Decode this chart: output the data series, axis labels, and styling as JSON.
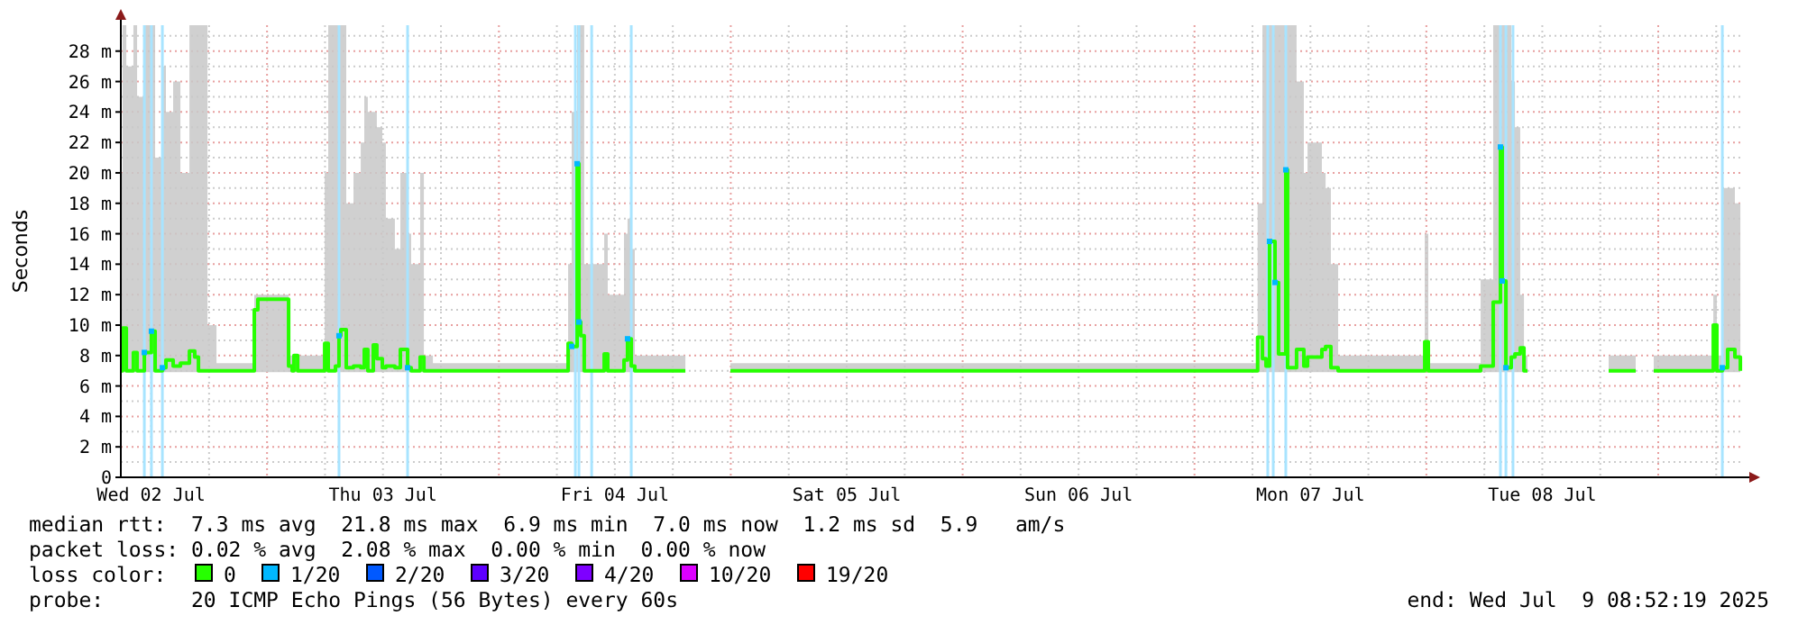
{
  "chart_data": {
    "type": "step",
    "ylabel": "Seconds",
    "xlim": [
      "2025-07-02T08:52",
      "2025-07-09T08:52"
    ],
    "xticks": [
      {
        "value": "2025-07-02T12:00",
        "label": "Wed 02 Jul"
      },
      {
        "value": "2025-07-03T12:00",
        "label": "Thu 03 Jul"
      },
      {
        "value": "2025-07-04T12:00",
        "label": "Fri 04 Jul"
      },
      {
        "value": "2025-07-05T12:00",
        "label": "Sat 05 Jul"
      },
      {
        "value": "2025-07-06T12:00",
        "label": "Sun 06 Jul"
      },
      {
        "value": "2025-07-07T12:00",
        "label": "Mon 07 Jul"
      },
      {
        "value": "2025-07-08T12:00",
        "label": "Tue 08 Jul"
      }
    ],
    "ylim": [
      0,
      29.7
    ],
    "yticks": [
      0,
      {
        "value": 2,
        "label": "2 m"
      },
      {
        "value": 4,
        "label": "4 m"
      },
      {
        "value": 6,
        "label": "6 m"
      },
      {
        "value": 8,
        "label": "8 m"
      },
      {
        "value": 10,
        "label": "10 m"
      },
      {
        "value": 12,
        "label": "12 m"
      },
      {
        "value": 14,
        "label": "14 m"
      },
      {
        "value": 16,
        "label": "16 m"
      },
      {
        "value": 18,
        "label": "18 m"
      },
      {
        "value": 20,
        "label": "20 m"
      },
      {
        "value": 22,
        "label": "22 m"
      },
      {
        "value": 24,
        "label": "24 m"
      },
      {
        "value": 26,
        "label": "26 m"
      },
      {
        "value": 28,
        "label": "28 m"
      }
    ],
    "grid": true,
    "legend": "bottom",
    "legend_title": "loss color:",
    "series": [
      {
        "name": "0",
        "color": "#26ff00",
        "x": [
          "2025-07-02T08:52",
          "2025-07-02T09:03",
          "2025-07-02T09:26",
          "2025-07-02T10:10",
          "2025-07-02T10:33",
          "2025-07-02T11:18",
          "2025-07-02T12:02",
          "2025-07-02T12:25",
          "2025-07-02T13:10",
          "2025-07-02T13:32",
          "2025-07-02T14:17",
          "2025-07-02T15:02",
          "2025-07-02T15:58",
          "2025-07-02T16:31",
          "2025-07-02T16:54",
          "2025-07-02T17:50",
          "2025-07-02T18:46",
          "2025-07-02T22:30",
          "2025-07-02T22:41",
          "2025-07-02T23:03",
          "2025-07-03T02:02",
          "2025-07-03T02:14",
          "2025-07-03T02:36",
          "2025-07-03T02:47",
          "2025-07-03T03:10",
          "2025-07-03T05:58",
          "2025-07-03T06:20",
          "2025-07-03T07:05",
          "2025-07-03T07:27",
          "2025-07-03T07:38",
          "2025-07-03T08:12",
          "2025-07-03T08:57",
          "2025-07-03T09:42",
          "2025-07-03T10:04",
          "2025-07-03T10:26",
          "2025-07-03T11:00",
          "2025-07-03T11:22",
          "2025-07-03T11:56",
          "2025-07-03T12:18",
          "2025-07-03T13:14",
          "2025-07-03T13:48",
          "2025-07-03T14:33",
          "2025-07-03T14:55",
          "2025-07-03T15:51",
          "2025-07-03T16:14",
          "2025-07-03T17:10",
          "2025-07-04T06:14",
          "2025-07-04T07:10",
          "2025-07-04T07:32",
          "2025-07-04T08:06",
          "2025-07-04T08:17",
          "2025-07-04T08:28",
          "2025-07-04T08:50",
          "2025-07-04T10:54",
          "2025-07-04T11:16",
          "2025-07-04T12:57",
          "2025-07-04T13:19",
          "2025-07-04T13:42",
          "2025-07-04T14:04",
          "2025-07-04T19:18",
          "2025-07-04T21:10",
          "2025-07-04T23:58",
          "2025-07-05T17:43",
          "2025-07-06T12:22",
          "2025-07-07T06:32",
          "2025-07-07T07:02",
          "2025-07-07T07:24",
          "2025-07-07T07:46",
          "2025-07-07T08:20",
          "2025-07-07T08:42",
          "2025-07-07T09:27",
          "2025-07-07T09:38",
          "2025-07-07T10:34",
          "2025-07-07T11:19",
          "2025-07-07T11:42",
          "2025-07-07T13:11",
          "2025-07-07T13:34",
          "2025-07-07T14:07",
          "2025-07-07T14:52",
          "2025-07-07T23:50",
          "2025-07-08T00:12",
          "2025-07-08T05:37",
          "2025-07-08T06:55",
          "2025-07-08T07:40",
          "2025-07-08T07:51",
          "2025-07-08T08:14",
          "2025-07-08T08:47",
          "2025-07-08T09:10",
          "2025-07-08T09:43",
          "2025-07-08T10:06",
          "2025-07-08T10:28",
          "2025-07-08T11:02",
          "2025-07-08T18:52",
          "2025-07-08T21:40",
          "2025-07-08T22:14",
          "2025-07-08T23:32",
          "2025-07-09T05:42",
          "2025-07-09T06:04",
          "2025-07-09T06:38",
          "2025-07-09T07:11",
          "2025-07-09T07:56",
          "2025-07-09T08:30"
        ],
        "values": [
          7.0,
          9.8,
          7.0,
          8.2,
          7.0,
          8.2,
          9.6,
          7.0,
          7.2,
          7.7,
          7.3,
          7.5,
          8.3,
          7.9,
          7.0,
          7.0,
          7.0,
          7.0,
          11.0,
          11.7,
          11.7,
          7.3,
          7.0,
          8.0,
          7.0,
          8.8,
          7.0,
          7.3,
          9.3,
          9.7,
          7.2,
          7.3,
          7.2,
          8.4,
          7.0,
          8.7,
          7.8,
          7.2,
          7.3,
          7.2,
          8.4,
          7.2,
          7.0,
          7.9,
          7.0,
          7.0,
          7.0,
          8.8,
          8.6,
          20.6,
          10.2,
          9.3,
          7.0,
          8.1,
          7.0,
          7.7,
          9.1,
          7.3,
          7.0,
          7.0,
          null,
          7.0,
          7.0,
          7.0,
          9.2,
          7.8,
          7.3,
          15.5,
          12.8,
          8.1,
          20.2,
          7.2,
          8.4,
          7.3,
          7.9,
          8.4,
          8.6,
          7.2,
          7.0,
          8.9,
          7.0,
          7.3,
          11.5,
          21.7,
          12.9,
          7.2,
          7.9,
          8.1,
          8.5,
          7.0,
          7.0,
          null,
          7.0,
          7.0,
          null,
          7.0,
          10.0,
          7.0,
          7.2,
          8.4,
          7.9,
          7.0
        ],
        "lower": [
          6.9,
          6.9,
          6.9,
          6.9,
          6.9,
          6.9,
          6.9,
          6.9,
          6.9,
          6.9,
          6.9,
          6.9,
          6.9,
          6.9,
          6.9,
          6.9,
          6.9,
          6.9,
          6.9,
          6.9,
          6.9,
          6.9,
          6.9,
          6.9,
          6.9,
          6.9,
          6.9,
          6.9,
          6.9,
          6.9,
          6.9,
          6.9,
          6.9,
          6.9,
          6.9,
          6.9,
          6.9,
          6.9,
          6.9,
          6.9,
          6.9,
          6.9,
          6.9,
          6.9,
          6.9,
          6.9,
          6.9,
          6.9,
          6.9,
          6.9,
          6.9,
          6.9,
          6.9,
          6.9,
          6.9,
          6.9,
          6.9,
          6.9,
          6.9,
          6.9,
          null,
          6.9,
          6.9,
          6.9,
          6.9,
          6.9,
          6.9,
          6.9,
          6.9,
          6.9,
          6.9,
          6.9,
          6.9,
          6.9,
          6.9,
          6.9,
          6.9,
          6.9,
          6.9,
          6.9,
          6.9,
          6.9,
          6.9,
          6.9,
          6.9,
          6.9,
          6.9,
          6.9,
          6.9,
          6.9,
          6.9,
          null,
          6.9,
          6.9,
          null,
          6.9,
          6.9,
          6.9,
          6.9,
          6.9,
          6.9,
          6.9
        ],
        "upper": [
          20,
          29.7,
          27,
          29.7,
          25,
          29.7,
          29.7,
          21,
          27,
          24,
          26,
          20,
          29.7,
          29.7,
          29.7,
          10,
          7.5,
          7.5,
          12,
          12,
          12,
          8,
          8,
          8,
          8,
          20,
          29.7,
          29.7,
          29.7,
          29.7,
          18,
          20,
          22,
          25,
          24,
          24,
          23,
          22,
          17,
          15,
          20,
          16,
          14,
          20,
          8,
          7.5,
          7.5,
          14,
          24,
          29.7,
          29.7,
          29.7,
          14,
          16,
          12,
          16,
          17,
          15,
          8,
          7.5,
          null,
          7.5,
          7.5,
          7.5,
          18,
          29.7,
          29.7,
          29.7,
          29.7,
          29.7,
          29.7,
          29.7,
          26,
          20,
          22,
          20,
          19,
          14,
          8,
          16,
          7.5,
          13,
          29.7,
          29.7,
          29.7,
          29.7,
          26,
          23,
          12,
          8,
          7.5,
          null,
          8,
          8,
          null,
          8,
          12,
          8,
          19,
          19,
          18,
          8
        ]
      },
      {
        "name": "1/20",
        "type": "scatter",
        "marker": "square",
        "color": "#00b8ff",
        "x": [
          "2025-07-02T11:18",
          "2025-07-02T12:02",
          "2025-07-02T13:10",
          "2025-07-03T07:27",
          "2025-07-03T14:33",
          "2025-07-04T07:32",
          "2025-07-04T08:06",
          "2025-07-04T08:17",
          "2025-07-04T13:19",
          "2025-07-07T07:46",
          "2025-07-07T08:20",
          "2025-07-07T09:27",
          "2025-07-08T07:40",
          "2025-07-08T07:51",
          "2025-07-08T08:14",
          "2025-07-09T06:38"
        ],
        "values": [
          8.2,
          9.6,
          7.2,
          9.3,
          7.2,
          8.6,
          20.6,
          10.2,
          9.1,
          15.5,
          12.8,
          20.2,
          21.7,
          12.9,
          7.2,
          7.2
        ]
      },
      {
        "name": "2/20",
        "type": "scatter",
        "marker": "square",
        "color": "#0059ff"
      },
      {
        "name": "3/20",
        "type": "scatter",
        "marker": "square",
        "color": "#5e00ff"
      },
      {
        "name": "4/20",
        "type": "scatter",
        "marker": "square",
        "color": "#7e00ff"
      },
      {
        "name": "10/20",
        "type": "scatter",
        "marker": "square",
        "color": "#dd00ff"
      },
      {
        "name": "19/20",
        "type": "scatter",
        "marker": "square",
        "color": "#ff0000"
      }
    ],
    "ref_lines": [
      {
        "axis": "x",
        "value": "2025-07-02T11:18",
        "color": "#a8e4ff"
      },
      {
        "axis": "x",
        "value": "2025-07-02T12:02",
        "color": "#a8e4ff"
      },
      {
        "axis": "x",
        "value": "2025-07-02T13:10",
        "color": "#a8e4ff"
      },
      {
        "axis": "x",
        "value": "2025-07-03T07:27",
        "color": "#a8e4ff"
      },
      {
        "axis": "x",
        "value": "2025-07-03T14:33",
        "color": "#a8e4ff"
      },
      {
        "axis": "x",
        "value": "2025-07-04T07:55",
        "color": "#a8e4ff"
      },
      {
        "axis": "x",
        "value": "2025-07-04T08:17",
        "color": "#a8e4ff"
      },
      {
        "axis": "x",
        "value": "2025-07-04T09:36",
        "color": "#a8e4ff"
      },
      {
        "axis": "x",
        "value": "2025-07-04T13:42",
        "color": "#a8e4ff"
      },
      {
        "axis": "x",
        "value": "2025-07-07T07:35",
        "color": "#a8e4ff"
      },
      {
        "axis": "x",
        "value": "2025-07-07T08:09",
        "color": "#a8e4ff"
      },
      {
        "axis": "x",
        "value": "2025-07-07T09:27",
        "color": "#a8e4ff"
      },
      {
        "axis": "x",
        "value": "2025-07-08T07:40",
        "color": "#a8e4ff"
      },
      {
        "axis": "x",
        "value": "2025-07-08T08:14",
        "color": "#a8e4ff"
      },
      {
        "axis": "x",
        "value": "2025-07-08T08:58",
        "color": "#a8e4ff"
      },
      {
        "axis": "x",
        "value": "2025-07-09T06:38",
        "color": "#a8e4ff"
      }
    ],
    "annotations": [
      "median rtt:  7.3 ms avg  21.8 ms max  6.9 ms min  7.0 ms now  1.2 ms sd  5.9   am/s",
      "packet loss: 0.02 % avg  2.08 % max  0.00 % min  0.00 % now",
      "probe:       20 ICMP Echo Pings (56 Bytes) every 60s",
      "end: Wed Jul  9 08:52:19 2025"
    ]
  }
}
